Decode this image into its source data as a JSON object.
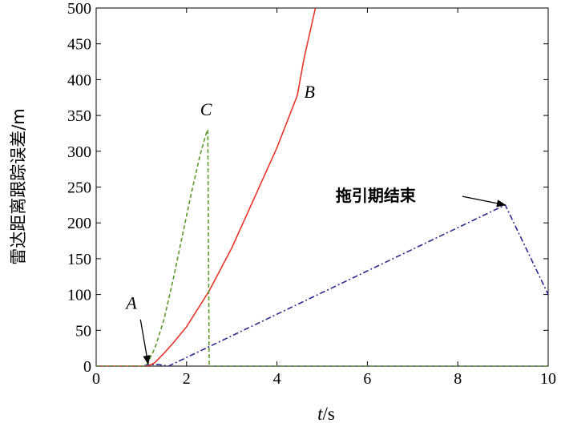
{
  "chart_data": {
    "type": "line",
    "xlabel": "t/s",
    "xlabel_var": "t",
    "xlabel_unit": "/s",
    "ylabel": "雷达距离跟踪误差/m",
    "xlim": [
      0,
      10
    ],
    "ylim": [
      0,
      500
    ],
    "xticks": [
      "0",
      "2",
      "4",
      "6",
      "8",
      "10"
    ],
    "yticks": [
      "0",
      "50",
      "100",
      "150",
      "200",
      "250",
      "300",
      "350",
      "400",
      "450",
      "500"
    ],
    "grid": false,
    "series": [
      {
        "name": "A",
        "color": "#2b2b8f",
        "style": "dashdot",
        "x": [
          0,
          1.0,
          1.2,
          1.4,
          1.6,
          9.05,
          10.0
        ],
        "y": [
          0,
          0,
          2,
          2,
          0,
          225,
          100
        ]
      },
      {
        "name": "B",
        "color": "#e8362a",
        "style": "solid",
        "x": [
          0,
          1.15,
          1.3,
          1.5,
          1.7,
          2.0,
          2.5,
          3.0,
          3.5,
          4.0,
          4.45,
          4.6,
          4.85
        ],
        "y": [
          0,
          0,
          5,
          18,
          32,
          55,
          105,
          165,
          235,
          305,
          378,
          430,
          500
        ]
      },
      {
        "name": "C",
        "color": "#5a9a2a",
        "style": "dashed",
        "x": [
          0,
          1.1,
          1.3,
          1.5,
          1.7,
          1.9,
          2.1,
          2.3,
          2.45,
          2.47,
          2.5,
          10.0
        ],
        "y": [
          0,
          0,
          25,
          65,
          120,
          180,
          240,
          295,
          328,
          330,
          0,
          0
        ]
      }
    ],
    "curve_labels": [
      {
        "text": "A",
        "x": 0.78,
        "y": 80
      },
      {
        "text": "B",
        "x": 4.72,
        "y": 375
      },
      {
        "text": "C",
        "x": 2.43,
        "y": 350
      }
    ],
    "annotations": [
      {
        "text": "拖引期结束",
        "x": 5.3,
        "y": 228,
        "arrow_to_x": 9.05,
        "arrow_to_y": 225
      },
      {
        "text": "",
        "x": 0.98,
        "y": 65,
        "arrow_to_x": 1.15,
        "arrow_to_y": 3
      }
    ]
  }
}
